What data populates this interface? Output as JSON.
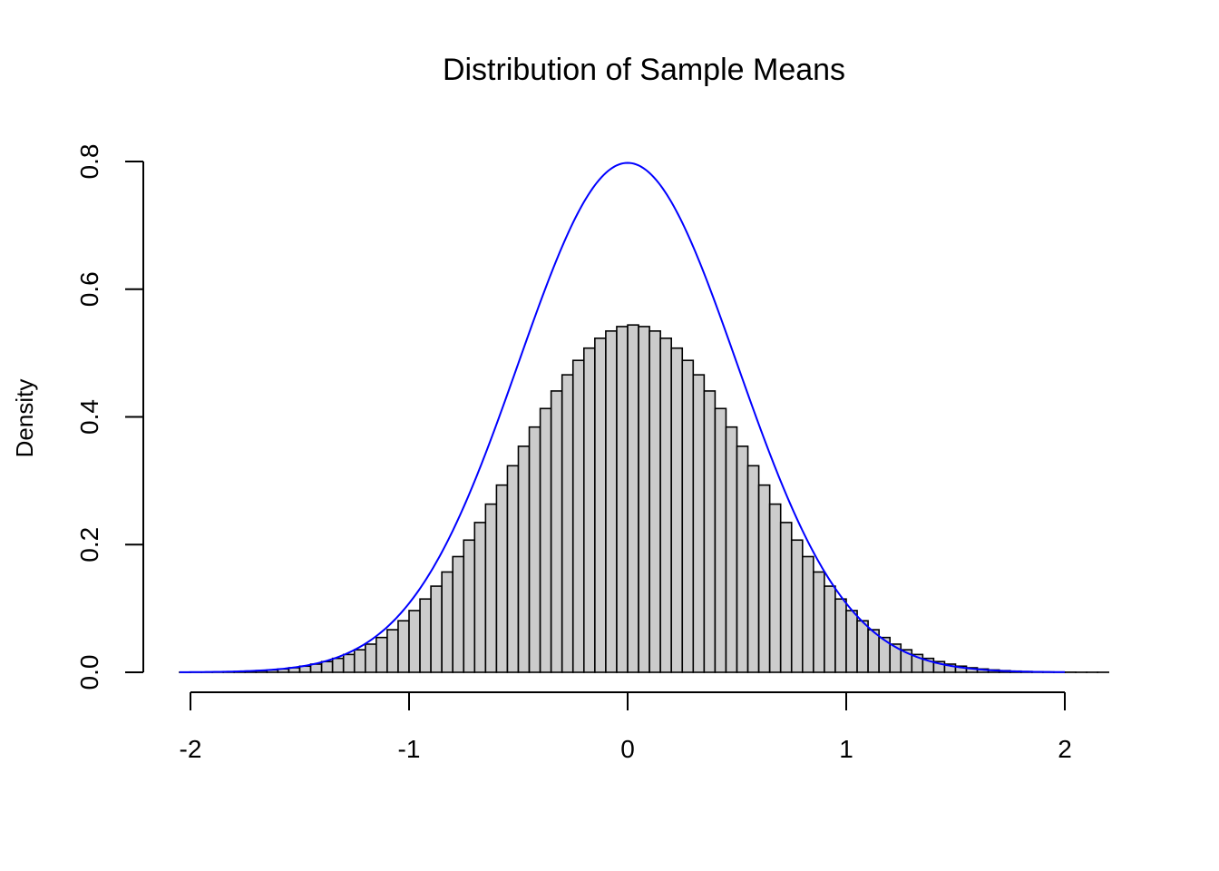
{
  "chart_data": {
    "type": "bar",
    "title": "Distribution of Sample Means",
    "xlabel": "",
    "ylabel": "Density",
    "xlim": [
      -2,
      2.2
    ],
    "ylim": [
      0,
      0.8
    ],
    "x_ticks": [
      "-2",
      "-1",
      "0",
      "1",
      "2"
    ],
    "y_ticks": [
      "0.0",
      "0.2",
      "0.4",
      "0.6",
      "0.8"
    ],
    "grid": false,
    "legend": "none",
    "bin_width": 0.05,
    "bin_start": -2.05,
    "densities": [
      0.0001,
      0.0002,
      0.0003,
      0.0005,
      0.0008,
      0.0012,
      0.0018,
      0.0026,
      0.0037,
      0.0052,
      0.0071,
      0.0096,
      0.0128,
      0.0168,
      0.0218,
      0.0279,
      0.0353,
      0.0441,
      0.0545,
      0.0667,
      0.0807,
      0.0967,
      0.1148,
      0.1349,
      0.1571,
      0.1812,
      0.2071,
      0.2346,
      0.2634,
      0.2932,
      0.3235,
      0.354,
      0.3841,
      0.4131,
      0.4406,
      0.4659,
      0.4885,
      0.5077,
      0.5232,
      0.5345,
      0.5415,
      0.544,
      0.5415,
      0.5345,
      0.5232,
      0.5077,
      0.4885,
      0.4659,
      0.4406,
      0.4131,
      0.3841,
      0.354,
      0.3235,
      0.2932,
      0.2634,
      0.2346,
      0.2071,
      0.1812,
      0.1571,
      0.1349,
      0.1148,
      0.0967,
      0.0807,
      0.0667,
      0.0545,
      0.0441,
      0.0353,
      0.0279,
      0.0218,
      0.0168,
      0.0128,
      0.0096,
      0.0071,
      0.0052,
      0.0037,
      0.0026,
      0.0018,
      0.0012,
      0.0008,
      0.0005,
      0.0003,
      0.0002,
      0.0001,
      0.0001,
      0.0001
    ],
    "density_curve": {
      "mean": 0,
      "sd": 0.5,
      "color": "#0000ff"
    },
    "bar_fill": "#cccccc",
    "bar_stroke": "#000000"
  }
}
